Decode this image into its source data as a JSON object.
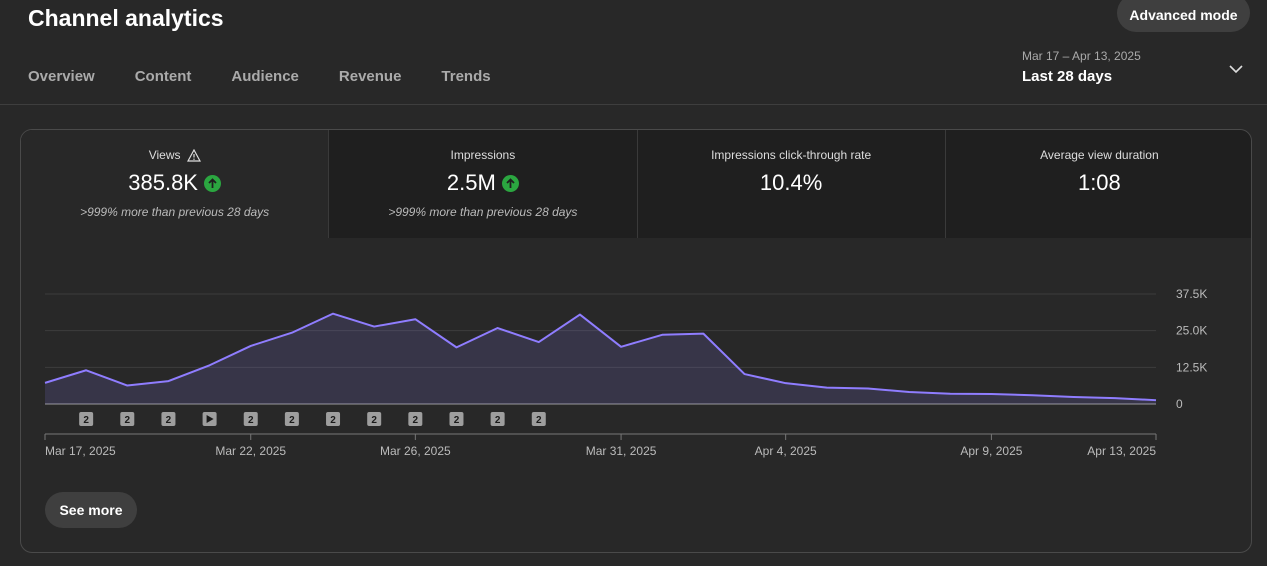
{
  "header": {
    "title": "Channel analytics",
    "advanced_mode_label": "Advanced mode"
  },
  "tabs": [
    {
      "label": "Overview",
      "active": false
    },
    {
      "label": "Content",
      "active": true
    },
    {
      "label": "Audience",
      "active": false
    },
    {
      "label": "Revenue",
      "active": false
    },
    {
      "label": "Trends",
      "active": false
    }
  ],
  "date_range": {
    "range": "Mar 17 – Apr 13, 2025",
    "period": "Last 28 days"
  },
  "metrics": [
    {
      "label": "Views",
      "value": "385.8K",
      "sub": ">999% more than previous 28 days",
      "warning": true,
      "trend": "up"
    },
    {
      "label": "Impressions",
      "value": "2.5M",
      "sub": ">999% more than previous 28 days",
      "warning": false,
      "trend": "up"
    },
    {
      "label": "Impressions click-through rate",
      "value": "10.4%",
      "sub": "",
      "warning": false,
      "trend": ""
    },
    {
      "label": "Average view duration",
      "value": "1:08",
      "sub": "",
      "warning": false,
      "trend": ""
    }
  ],
  "chart_data": {
    "type": "area",
    "series": [
      {
        "values": [
          7200,
          11500,
          6300,
          7800,
          13200,
          19800,
          24300,
          30800,
          26400,
          28900,
          19300,
          25900,
          21100,
          30500,
          19500,
          23600,
          24000,
          10200,
          7100,
          5600,
          5300,
          4100,
          3500,
          3400,
          3000,
          2400,
          2000,
          1300
        ]
      }
    ],
    "x_ticks": [
      {
        "label": "Mar 17, 2025",
        "index": 0
      },
      {
        "label": "Mar 22, 2025",
        "index": 5
      },
      {
        "label": "Mar 26, 2025",
        "index": 9
      },
      {
        "label": "Mar 31, 2025",
        "index": 14
      },
      {
        "label": "Apr 4, 2025",
        "index": 18
      },
      {
        "label": "Apr 9, 2025",
        "index": 23
      },
      {
        "label": "Apr 13, 2025",
        "index": 27
      }
    ],
    "y_ticks": [
      {
        "label": "37.5K",
        "value": 37500
      },
      {
        "label": "25.0K",
        "value": 25000
      },
      {
        "label": "12.5K",
        "value": 12500
      },
      {
        "label": "0",
        "value": 0
      }
    ],
    "ylim": [
      0,
      37500
    ],
    "markers": [
      {
        "index": 1,
        "type": "badge",
        "label": "2"
      },
      {
        "index": 2,
        "type": "badge",
        "label": "2"
      },
      {
        "index": 3,
        "type": "badge",
        "label": "2"
      },
      {
        "index": 4,
        "type": "play",
        "label": ""
      },
      {
        "index": 5,
        "type": "badge",
        "label": "2"
      },
      {
        "index": 6,
        "type": "badge",
        "label": "2"
      },
      {
        "index": 7,
        "type": "badge",
        "label": "2"
      },
      {
        "index": 8,
        "type": "badge",
        "label": "2"
      },
      {
        "index": 9,
        "type": "badge",
        "label": "2"
      },
      {
        "index": 10,
        "type": "badge",
        "label": "2"
      },
      {
        "index": 11,
        "type": "badge",
        "label": "2"
      },
      {
        "index": 12,
        "type": "badge",
        "label": "2"
      }
    ],
    "line_color": "#8f7dff",
    "grid": true
  },
  "footer": {
    "see_more_label": "See more"
  }
}
